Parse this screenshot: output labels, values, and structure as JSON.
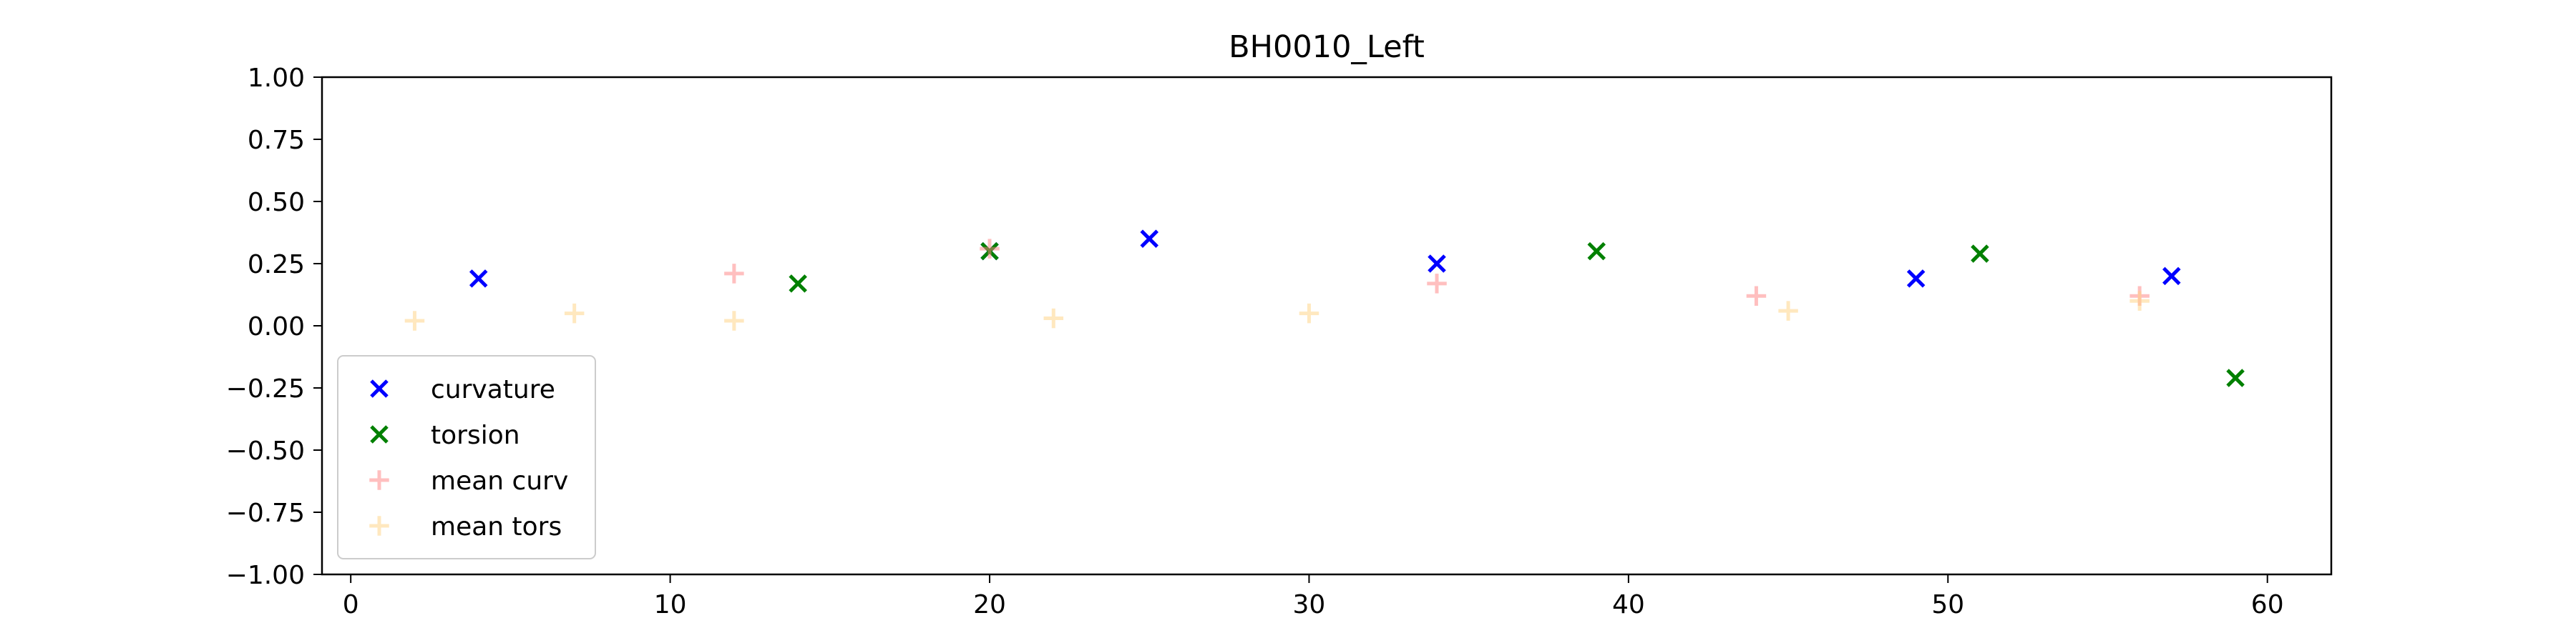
{
  "chart_data": {
    "type": "scatter",
    "title": "BH0010_Left",
    "xlabel": "",
    "ylabel": "",
    "xlim": [
      -0.9,
      62
    ],
    "ylim": [
      -1.0,
      1.0
    ],
    "xticks": [
      0,
      10,
      20,
      30,
      40,
      50,
      60
    ],
    "yticks": [
      1.0,
      0.75,
      0.5,
      0.25,
      0.0,
      -0.25,
      -0.5,
      -0.75,
      -1.0
    ],
    "xtick_labels": [
      "0",
      "10",
      "20",
      "30",
      "40",
      "50",
      "60"
    ],
    "ytick_labels": [
      "1.00",
      "0.75",
      "0.50",
      "0.25",
      "0.00",
      "−0.25",
      "−0.50",
      "−0.75",
      "−1.00"
    ],
    "grid": false,
    "legend_position": "lower-left",
    "series": [
      {
        "name": "curvature",
        "marker": "x",
        "color": "#0000ff",
        "points": [
          [
            4,
            0.19
          ],
          [
            20,
            0.3
          ],
          [
            25,
            0.35
          ],
          [
            34,
            0.25
          ],
          [
            49,
            0.19
          ],
          [
            57,
            0.2
          ]
        ]
      },
      {
        "name": "torsion",
        "marker": "x",
        "color": "#008000",
        "points": [
          [
            14,
            0.17
          ],
          [
            20,
            0.3
          ],
          [
            39,
            0.3
          ],
          [
            51,
            0.29
          ],
          [
            59,
            -0.21
          ]
        ]
      },
      {
        "name": "mean curv",
        "marker": "+",
        "color": "#ff8080",
        "points": [
          [
            12,
            0.21
          ],
          [
            20,
            0.31
          ],
          [
            34,
            0.17
          ],
          [
            44,
            0.12
          ],
          [
            56,
            0.12
          ]
        ]
      },
      {
        "name": "mean tors",
        "marker": "+",
        "color": "#ffd280",
        "points": [
          [
            2,
            0.02
          ],
          [
            7,
            0.05
          ],
          [
            12,
            0.02
          ],
          [
            22,
            0.03
          ],
          [
            30,
            0.05
          ],
          [
            45,
            0.06
          ],
          [
            56,
            0.1
          ]
        ]
      }
    ]
  }
}
